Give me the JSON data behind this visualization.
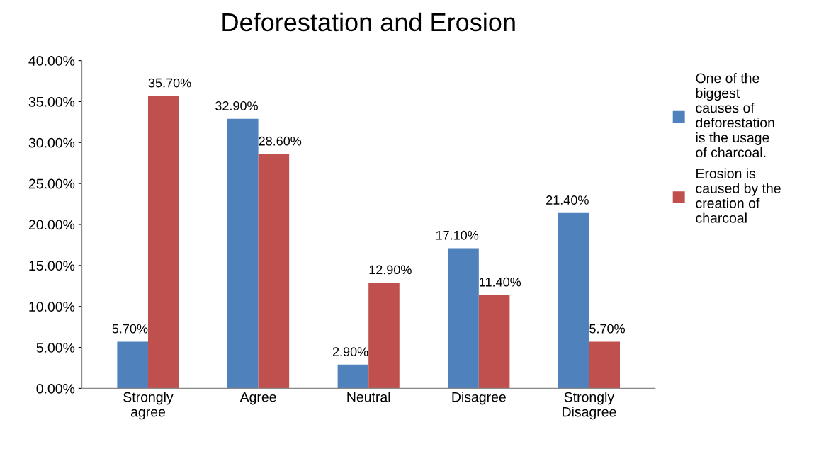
{
  "chart_data": {
    "type": "bar",
    "title": "Deforestation and Erosion",
    "categories": [
      "Strongly agree",
      "Agree",
      "Neutral",
      "Disagree",
      "Strongly Disagree"
    ],
    "series": [
      {
        "name": "One of the biggest causes of deforestation is the usage of charcoal.",
        "color": "#4f81bd",
        "values": [
          5.7,
          32.9,
          2.9,
          17.1,
          21.4
        ],
        "value_labels": [
          "5.70%",
          "32.90%",
          "2.90%",
          "17.10%",
          "21.40%"
        ]
      },
      {
        "name": "Erosion is caused by the creation of charcoal",
        "color": "#c0504d",
        "values": [
          35.7,
          28.6,
          12.9,
          11.4,
          5.7
        ],
        "value_labels": [
          "35.70%",
          "28.60%",
          "12.90%",
          "11.40%",
          "5.70%"
        ]
      }
    ],
    "ylim": [
      0,
      40
    ],
    "yticks": [
      {
        "value": 0,
        "label": "0.00%"
      },
      {
        "value": 5,
        "label": "5.00%"
      },
      {
        "value": 10,
        "label": "10.00%"
      },
      {
        "value": 15,
        "label": "15.00%"
      },
      {
        "value": 20,
        "label": "20.00%"
      },
      {
        "value": 25,
        "label": "25.00%"
      },
      {
        "value": 30,
        "label": "30.00%"
      },
      {
        "value": 35,
        "label": "35.00%"
      },
      {
        "value": 40,
        "label": "40.00%"
      }
    ],
    "grid": false,
    "legend": "right"
  }
}
